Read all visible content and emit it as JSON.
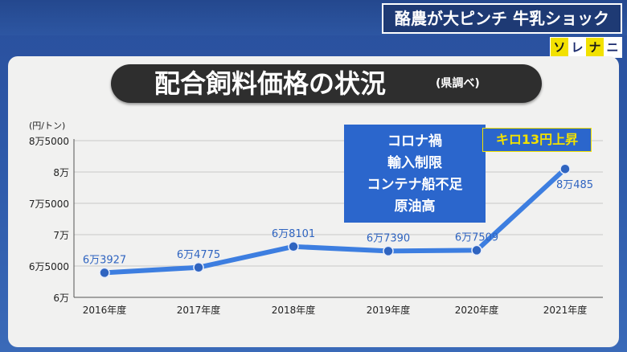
{
  "header": {
    "news_title": "酪農が大ピンチ 牛乳ショック",
    "logo": [
      "ソ",
      "レ",
      "ナ",
      "ニ"
    ]
  },
  "panel": {
    "title": "配合飼料価格の状況",
    "source": "(県調べ)",
    "reasons": [
      "コロナ禍",
      "輸入制限",
      "コンテナ船不足",
      "原油高"
    ],
    "rise_label": "キロ13円上昇"
  },
  "colors": {
    "line": "#3d7ee0",
    "marker": "#2f64c0",
    "box": "#2b66cc",
    "accent": "#f2e100"
  },
  "chart_data": {
    "type": "line",
    "unit_label": "(円/トン)",
    "categories": [
      "2016年度",
      "2017年度",
      "2018年度",
      "2019年度",
      "2020年度",
      "2021年度"
    ],
    "values": [
      63927,
      64775,
      68101,
      67390,
      67509,
      80485
    ],
    "value_labels": [
      "6万3927",
      "6万4775",
      "6万8101",
      "6万7390",
      "6万7509",
      "8万485"
    ],
    "ylim": [
      60000,
      85000
    ],
    "yticks": [
      60000,
      65000,
      70000,
      75000,
      80000,
      85000
    ],
    "ytick_labels": [
      "6万",
      "6万5000",
      "7万",
      "7万5000",
      "8万",
      "8万5000"
    ],
    "grid": true
  }
}
